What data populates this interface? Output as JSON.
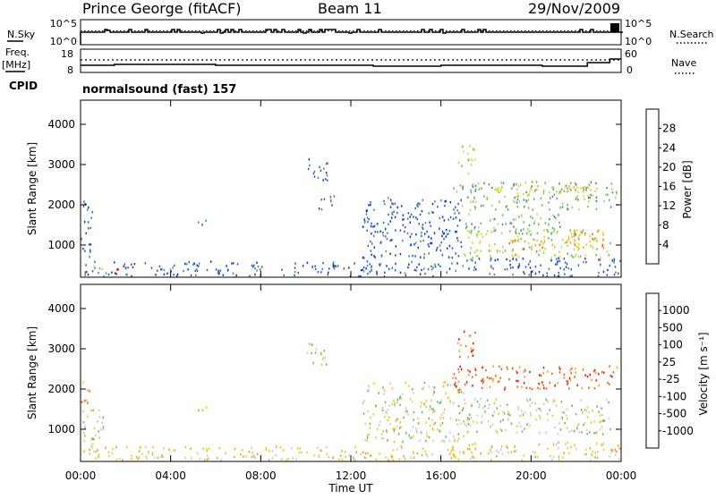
{
  "header": {
    "station": "Prince George (fitACF)",
    "beam": "Beam 11",
    "date": "29/Nov/2009"
  },
  "sky_panel": {
    "left_label": "N.Sky",
    "left_ticks": [
      "10^5",
      "10^0"
    ],
    "right_label": "N.Search",
    "right_ticks": [
      "10^5",
      "10^0"
    ]
  },
  "freq_panel": {
    "left_label_1": "Freq.",
    "left_label_2": "[MHz]",
    "left_ticks": [
      "18",
      "8"
    ],
    "right_label": "Nave",
    "right_ticks": [
      "60",
      "0"
    ],
    "cpid_label": "CPID"
  },
  "program": {
    "label": "normalsound (fast) 157"
  },
  "chart_data": [
    {
      "type": "heatmap",
      "name": "power",
      "ylabel": "Slant Range [km]",
      "yticks": [
        1000,
        2000,
        3000,
        4000
      ],
      "ylim": [
        200,
        4600
      ],
      "colorbar_label": "Power [dB]",
      "colorbar_ticks": [
        "28",
        "24",
        "20",
        "16",
        "12",
        "8",
        "4"
      ],
      "colors": [
        "#0a2bff",
        "#2a5cc8",
        "#3f8f8a",
        "#5fba57",
        "#b2d64a",
        "#ffd000",
        "#ff9a00",
        "#ff5a00",
        "#e60000"
      ],
      "regions": [
        {
          "t0": 0.1,
          "t1": 16.0,
          "r0": 240,
          "r1": 620,
          "level": 1
        },
        {
          "t0": 0.0,
          "t1": 0.5,
          "r0": 700,
          "r1": 2200,
          "level": 1
        },
        {
          "t0": 1.5,
          "t1": 2.3,
          "r0": 250,
          "r1": 500,
          "level": 8
        },
        {
          "t0": 0.4,
          "t1": 1.0,
          "r0": 300,
          "r1": 500,
          "level": 4
        },
        {
          "t0": 5.0,
          "t1": 5.6,
          "r0": 1450,
          "r1": 1650,
          "level": 1
        },
        {
          "t0": 10.0,
          "t1": 11.0,
          "r0": 2600,
          "r1": 3200,
          "level": 1
        },
        {
          "t0": 10.5,
          "t1": 11.3,
          "r0": 1900,
          "r1": 2300,
          "level": 1
        },
        {
          "t0": 12.5,
          "t1": 17.0,
          "r0": 700,
          "r1": 2200,
          "level": 1
        },
        {
          "t0": 16.5,
          "t1": 23.8,
          "r0": 1900,
          "r1": 2600,
          "level": 3
        },
        {
          "t0": 17.0,
          "t1": 21.5,
          "r0": 1300,
          "r1": 1800,
          "level": 3
        },
        {
          "t0": 17.0,
          "t1": 23.5,
          "r0": 700,
          "r1": 1400,
          "level": 4
        },
        {
          "t0": 19.0,
          "t1": 21.0,
          "r0": 850,
          "r1": 1150,
          "level": 6
        },
        {
          "t0": 21.5,
          "t1": 23.2,
          "r0": 900,
          "r1": 1400,
          "level": 6
        },
        {
          "t0": 16.7,
          "t1": 17.5,
          "r0": 2800,
          "r1": 3500,
          "level": 4
        },
        {
          "t0": 18.0,
          "t1": 23.0,
          "r0": 2200,
          "r1": 2500,
          "level": 5
        },
        {
          "t0": 16.2,
          "t1": 24.0,
          "r0": 240,
          "r1": 700,
          "level": 1
        }
      ]
    },
    {
      "type": "heatmap",
      "name": "velocity",
      "ylabel": "Slant Range [km]",
      "yticks": [
        1000,
        2000,
        3000,
        4000
      ],
      "ylim": [
        200,
        4600
      ],
      "colorbar_label": "Velocity [m s⁻¹]",
      "colorbar_ticks": [
        "1000",
        "500",
        "100",
        "25",
        "-25",
        "-100",
        "-500",
        "-1000"
      ],
      "colors": [
        "#ff0000",
        "#ff5a00",
        "#ff9a00",
        "#f4c800",
        "#c8c8c0",
        "#5fba57",
        "#3f8f8a",
        "#2a5cc8",
        "#0a2bff"
      ],
      "regions": [
        {
          "t0": 0.1,
          "t1": 16.0,
          "r0": 240,
          "r1": 600,
          "level": 3
        },
        {
          "t0": 0.0,
          "t1": 1.0,
          "r0": 500,
          "r1": 1500,
          "level": 4
        },
        {
          "t0": 0.0,
          "t1": 0.4,
          "r0": 1600,
          "r1": 2200,
          "level": 2
        },
        {
          "t0": 5.0,
          "t1": 5.6,
          "r0": 1450,
          "r1": 1650,
          "level": 2
        },
        {
          "t0": 10.0,
          "t1": 11.0,
          "r0": 2600,
          "r1": 3200,
          "level": 4
        },
        {
          "t0": 12.5,
          "t1": 17.0,
          "r0": 700,
          "r1": 2200,
          "level": 4
        },
        {
          "t0": 16.5,
          "t1": 23.8,
          "r0": 2000,
          "r1": 2600,
          "level": 1
        },
        {
          "t0": 17.0,
          "t1": 23.5,
          "r0": 900,
          "r1": 1800,
          "level": 4
        },
        {
          "t0": 16.7,
          "t1": 17.5,
          "r0": 2800,
          "r1": 3500,
          "level": 1
        },
        {
          "t0": 16.2,
          "t1": 24.0,
          "r0": 240,
          "r1": 700,
          "level": 3
        }
      ]
    }
  ],
  "x_axis": {
    "label": "Time UT",
    "ticks": [
      "00:00",
      "04:00",
      "08:00",
      "12:00",
      "16:00",
      "20:00",
      "00:00"
    ],
    "range_hours": [
      0,
      24
    ]
  }
}
